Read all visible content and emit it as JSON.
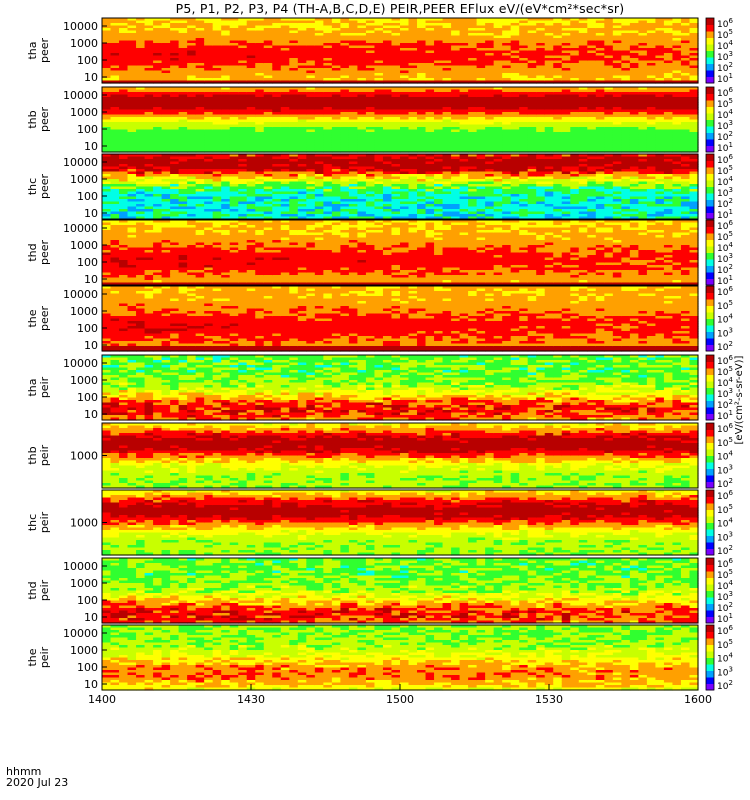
{
  "chart_data": {
    "type": "heatmap",
    "title": "P5, P1, P2, P3, P4 (TH-A,B,C,D,E) PEIR,PEER EFlux eV/(eV*cm²*sec*sr)",
    "x_tick_labels": [
      "1400",
      "1430",
      "1500",
      "1530",
      "1600"
    ],
    "x_corner_label": "hhmm",
    "date_label": "2020 Jul 23",
    "colorbar_label": "[eV/(cm²-s-sr-eV)]",
    "colormap": [
      "#7800ff",
      "#0000ff",
      "#00a0ff",
      "#00ffe6",
      "#30ff30",
      "#c8ff00",
      "#ffff00",
      "#ffa000",
      "#ff0000",
      "#b80000"
    ],
    "panels": [
      {
        "probe": "tha",
        "instrument": "peer",
        "y_ticks": [
          "10000",
          "1000",
          "100",
          "10"
        ],
        "cb_min": 1,
        "cb_max": 6,
        "style": {
          "base": 6.4,
          "peak": 8.2,
          "peakPos": 0.55,
          "lowBand": 0.06,
          "noise": 0.5,
          "drift": 0.6
        }
      },
      {
        "probe": "thb",
        "instrument": "peer",
        "y_ticks": [
          "10000",
          "1000",
          "100",
          "10"
        ],
        "cb_min": 1,
        "cb_max": 6,
        "style": {
          "base": 3.8,
          "peak": 9.2,
          "peakPos": 0.22,
          "lowBand": 0.0,
          "noise": 0.3,
          "drift": 0.0
        }
      },
      {
        "probe": "thc",
        "instrument": "peer",
        "y_ticks": [
          "10000",
          "1000",
          "100",
          "10"
        ],
        "cb_min": 1,
        "cb_max": 6,
        "style": {
          "base": 3.0,
          "peak": 9.3,
          "peakPos": 0.12,
          "lowBand": 0.0,
          "noise": 1.0,
          "drift": 0.0
        }
      },
      {
        "probe": "thd",
        "instrument": "peer",
        "y_ticks": [
          "10000",
          "1000",
          "100",
          "10"
        ],
        "cb_min": 1,
        "cb_max": 6,
        "style": {
          "base": 6.5,
          "peak": 8.3,
          "peakPos": 0.6,
          "lowBand": 0.07,
          "noise": 0.5,
          "drift": 0.5
        }
      },
      {
        "probe": "the",
        "instrument": "peer",
        "y_ticks": [
          "10000",
          "1000",
          "100",
          "10"
        ],
        "cb_min": 2,
        "cb_max": 6,
        "style": {
          "base": 6.7,
          "peak": 8.3,
          "peakPos": 0.6,
          "lowBand": 0.1,
          "noise": 0.5,
          "drift": 0.6
        }
      },
      {
        "probe": "tha",
        "instrument": "peir",
        "y_ticks": [
          "10000",
          "1000",
          "100",
          "10"
        ],
        "cb_min": 1,
        "cb_max": 6,
        "style": {
          "base": 4.2,
          "peak": 8.3,
          "peakPos": 0.82,
          "lowBand": 0.0,
          "noise": 0.9,
          "drift": 0.5
        }
      },
      {
        "probe": "thb",
        "instrument": "peir",
        "y_ticks": [
          "1000"
        ],
        "cb_min": 2,
        "cb_max": 6,
        "style": {
          "base": 4.6,
          "peak": 9.1,
          "peakPos": 0.3,
          "lowBand": 0.0,
          "noise": 0.6,
          "drift": 0.0
        }
      },
      {
        "probe": "thc",
        "instrument": "peir",
        "y_ticks": [
          "1000"
        ],
        "cb_min": 2,
        "cb_max": 6,
        "style": {
          "base": 4.6,
          "peak": 9.1,
          "peakPos": 0.3,
          "lowBand": 0.0,
          "noise": 0.6,
          "drift": 0.0
        }
      },
      {
        "probe": "thd",
        "instrument": "peir",
        "y_ticks": [
          "10000",
          "1000",
          "100",
          "10"
        ],
        "cb_min": 1,
        "cb_max": 6,
        "style": {
          "base": 4.3,
          "peak": 8.4,
          "peakPos": 0.85,
          "lowBand": 0.0,
          "noise": 0.9,
          "drift": 0.7
        }
      },
      {
        "probe": "the",
        "instrument": "peir",
        "y_ticks": [
          "10000",
          "1000",
          "100",
          "10"
        ],
        "cb_min": 2,
        "cb_max": 6,
        "style": {
          "base": 4.6,
          "peak": 7.4,
          "peakPos": 0.72,
          "lowBand": 0.0,
          "noise": 0.7,
          "drift": 0.3
        }
      }
    ]
  }
}
